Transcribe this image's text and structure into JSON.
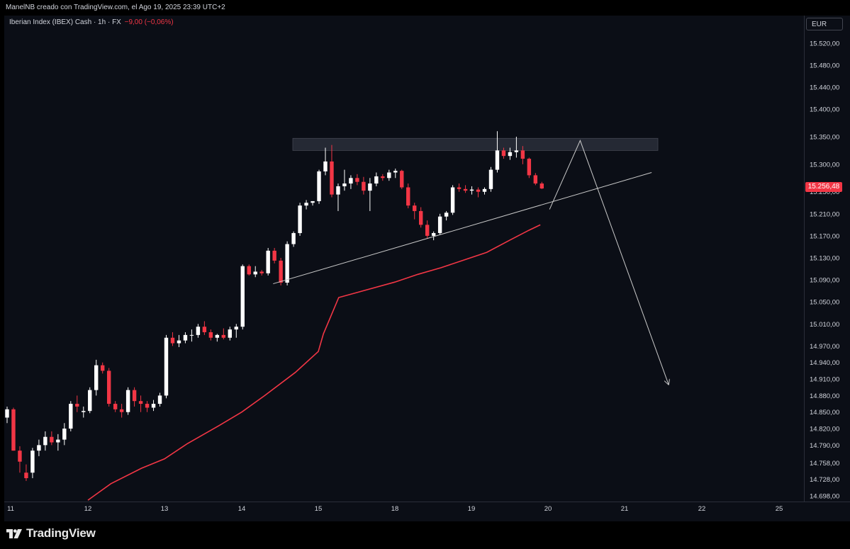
{
  "header": {
    "caption": "ManelNB creado con TradingView.com, el Ago 19, 2025 23:39 UTC+2"
  },
  "symbol": {
    "title": "Iberian Index (IBEX) Cash · 1h · FX",
    "change": "−9,00 (−0,06%)"
  },
  "currency_button": "EUR",
  "last_price": "15.256,48",
  "brand": "TradingView",
  "colors": {
    "background": "#0b0e16",
    "bull": "#ffffff",
    "bear": "#f23645",
    "moving_average": "#f23645",
    "drawings": "#c9c9c9",
    "resistance_zone": "#2a2e39"
  },
  "chart_data": {
    "type": "candlestick",
    "title": "Iberian Index (IBEX) Cash · 1h · FX",
    "x_ticks": [
      "11",
      "12",
      "13",
      "14",
      "15",
      "18",
      "19",
      "20",
      "21",
      "22",
      "25"
    ],
    "y_ticks": [
      "15.520,00",
      "15.480,00",
      "15.440,00",
      "15.400,00",
      "15.350,00",
      "15.300,00",
      "15.250,00",
      "15.210,00",
      "15.170,00",
      "15.130,00",
      "15.090,00",
      "15.050,00",
      "15.010,00",
      "14.970,00",
      "14.940,00",
      "14.910,00",
      "14.880,00",
      "14.850,00",
      "14.820,00",
      "14.790,00",
      "14.758,00",
      "14.728,00",
      "14.698,00"
    ],
    "y_tick_values": [
      15520,
      15480,
      15440,
      15400,
      15350,
      15300,
      15250,
      15210,
      15170,
      15130,
      15090,
      15050,
      15010,
      14970,
      14940,
      14910,
      14880,
      14850,
      14820,
      14790,
      14758,
      14728,
      14698
    ],
    "ylim": [
      14690,
      15545
    ],
    "candles": [
      [
        14840,
        14860,
        14830,
        14855
      ],
      [
        14855,
        14858,
        14780,
        14780
      ],
      [
        14780,
        14788,
        14740,
        14760
      ],
      [
        14740,
        14755,
        14725,
        14730
      ],
      [
        14740,
        14785,
        14730,
        14780
      ],
      [
        14780,
        14800,
        14770,
        14790
      ],
      [
        14790,
        14815,
        14780,
        14805
      ],
      [
        14805,
        14815,
        14790,
        14795
      ],
      [
        14795,
        14810,
        14780,
        14800
      ],
      [
        14800,
        14830,
        14790,
        14820
      ],
      [
        14820,
        14870,
        14815,
        14865
      ],
      [
        14865,
        14880,
        14850,
        14860
      ],
      [
        14850,
        14860,
        14840,
        14852
      ],
      [
        14852,
        14895,
        14848,
        14890
      ],
      [
        14890,
        14945,
        14880,
        14935
      ],
      [
        14935,
        14940,
        14920,
        14925
      ],
      [
        14925,
        14930,
        14860,
        14865
      ],
      [
        14865,
        14870,
        14850,
        14855
      ],
      [
        14855,
        14865,
        14840,
        14850
      ],
      [
        14850,
        14895,
        14845,
        14890
      ],
      [
        14890,
        14895,
        14860,
        14870
      ],
      [
        14870,
        14880,
        14850,
        14865
      ],
      [
        14865,
        14870,
        14850,
        14858
      ],
      [
        14858,
        14872,
        14852,
        14865
      ],
      [
        14865,
        14885,
        14860,
        14880
      ],
      [
        14880,
        14990,
        14875,
        14985
      ],
      [
        14985,
        14995,
        14970,
        14975
      ],
      [
        14975,
        14990,
        14968,
        14980
      ],
      [
        14980,
        14995,
        14975,
        14990
      ],
      [
        14990,
        15000,
        14978,
        14990
      ],
      [
        14990,
        15010,
        14985,
        15005
      ],
      [
        15005,
        15015,
        14990,
        14995
      ],
      [
        14995,
        15000,
        14980,
        14985
      ],
      [
        14985,
        14992,
        14978,
        14990
      ],
      [
        14990,
        15002,
        14982,
        14985
      ],
      [
        14985,
        15005,
        14980,
        15000
      ],
      [
        15000,
        15010,
        14985,
        15005
      ],
      [
        15005,
        15118,
        15000,
        15115
      ],
      [
        15115,
        15118,
        15098,
        15100
      ],
      [
        15100,
        15115,
        15095,
        15105
      ],
      [
        15105,
        15108,
        15098,
        15102
      ],
      [
        15102,
        15148,
        15098,
        15143
      ],
      [
        15143,
        15148,
        15120,
        15125
      ],
      [
        15125,
        15130,
        15080,
        15085
      ],
      [
        15085,
        15160,
        15080,
        15155
      ],
      [
        15155,
        15178,
        15150,
        15175
      ],
      [
        15175,
        15230,
        15170,
        15225
      ],
      [
        15225,
        15235,
        15218,
        15230
      ],
      [
        15230,
        15233,
        15225,
        15233
      ],
      [
        15233,
        15290,
        15228,
        15287
      ],
      [
        15287,
        15330,
        15280,
        15305
      ],
      [
        15305,
        15335,
        15240,
        15245
      ],
      [
        15245,
        15265,
        15215,
        15260
      ],
      [
        15260,
        15290,
        15252,
        15265
      ],
      [
        15265,
        15280,
        15255,
        15275
      ],
      [
        15275,
        15282,
        15262,
        15268
      ],
      [
        15268,
        15277,
        15245,
        15252
      ],
      [
        15252,
        15275,
        15215,
        15265
      ],
      [
        15265,
        15285,
        15260,
        15278
      ],
      [
        15278,
        15282,
        15270,
        15275
      ],
      [
        15275,
        15290,
        15270,
        15285
      ],
      [
        15285,
        15292,
        15275,
        15288
      ],
      [
        15288,
        15290,
        15255,
        15258
      ],
      [
        15258,
        15265,
        15220,
        15225
      ],
      [
        15225,
        15230,
        15200,
        15215
      ],
      [
        15215,
        15222,
        15185,
        15190
      ],
      [
        15190,
        15198,
        15165,
        15170
      ],
      [
        15170,
        15178,
        15162,
        15175
      ],
      [
        15175,
        15210,
        15172,
        15205
      ],
      [
        15205,
        15215,
        15198,
        15212
      ],
      [
        15212,
        15262,
        15208,
        15258
      ],
      [
        15258,
        15265,
        15250,
        15255
      ],
      [
        15255,
        15262,
        15248,
        15252
      ],
      [
        15252,
        15260,
        15245,
        15254
      ],
      [
        15254,
        15258,
        15240,
        15250
      ],
      [
        15250,
        15258,
        15245,
        15255
      ],
      [
        15255,
        15295,
        15250,
        15290
      ],
      [
        15290,
        15360,
        15285,
        15325
      ],
      [
        15325,
        15330,
        15310,
        15315
      ],
      [
        15315,
        15330,
        15308,
        15322
      ],
      [
        15322,
        15350,
        15312,
        15325
      ],
      [
        15325,
        15333,
        15300,
        15310
      ],
      [
        15310,
        15312,
        15275,
        15280
      ],
      [
        15280,
        15284,
        15262,
        15265
      ],
      [
        15265,
        15268,
        15255,
        15256
      ]
    ],
    "moving_average": [
      [
        12.0,
        14690
      ],
      [
        12.3,
        14720
      ],
      [
        12.7,
        14748
      ],
      [
        13.0,
        14765
      ],
      [
        13.3,
        14793
      ],
      [
        13.7,
        14825
      ],
      [
        14.0,
        14850
      ],
      [
        14.3,
        14880
      ],
      [
        14.7,
        14922
      ],
      [
        15.0,
        14960
      ],
      [
        15.2,
        14992
      ],
      [
        15.5,
        15025
      ],
      [
        15.8,
        15058
      ],
      [
        18.0,
        15086
      ],
      [
        18.3,
        15100
      ],
      [
        18.6,
        15112
      ],
      [
        18.9,
        15126
      ],
      [
        19.2,
        15140
      ],
      [
        19.5,
        15162
      ],
      [
        19.75,
        15180
      ],
      [
        19.9,
        15190
      ]
    ],
    "resistance_zone": [
      15325,
      15347
    ],
    "trendline": [
      [
        14.41,
        15083
      ],
      [
        21.35,
        15285
      ]
    ],
    "projection": [
      [
        20.02,
        15218
      ],
      [
        20.42,
        15343
      ],
      [
        21.57,
        14900
      ]
    ]
  }
}
